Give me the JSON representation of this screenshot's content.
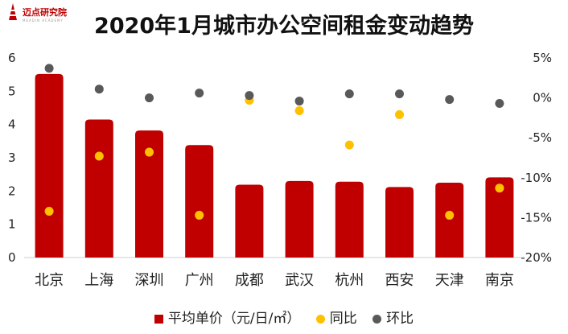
{
  "logo": {
    "name": "迈点研究院",
    "subtitle": "MEADIN ACADEMY",
    "color": "#c00000"
  },
  "chart_data": {
    "type": "bar",
    "title": "2020年1月城市办公空间租金变动趋势",
    "categories": [
      "北京",
      "上海",
      "深圳",
      "广州",
      "成都",
      "武汉",
      "杭州",
      "西安",
      "天津",
      "南京"
    ],
    "series": [
      {
        "name": "平均单价（元/日/㎡）",
        "type": "bar",
        "axis": "left",
        "color": "#c00000",
        "values": [
          5.52,
          4.15,
          3.82,
          3.38,
          2.19,
          2.3,
          2.28,
          2.12,
          2.25,
          2.41
        ]
      },
      {
        "name": "同比",
        "type": "scatter",
        "axis": "right",
        "color": "#ffc000",
        "values": [
          -14.2,
          -7.3,
          -6.8,
          -14.7,
          -0.3,
          -1.6,
          -5.9,
          -2.1,
          -14.7,
          -11.3
        ]
      },
      {
        "name": "环比",
        "type": "scatter",
        "axis": "right",
        "color": "#595959",
        "values": [
          3.7,
          1.1,
          0.0,
          0.6,
          0.3,
          -0.4,
          0.5,
          0.5,
          -0.2,
          -0.7
        ]
      }
    ],
    "left_axis": {
      "ylim": [
        0,
        6
      ],
      "ticks": [
        "0",
        "1",
        "2",
        "3",
        "4",
        "5",
        "6"
      ]
    },
    "right_axis": {
      "ylim": [
        -20,
        5
      ],
      "ticks": [
        "-20%",
        "-15%",
        "-10%",
        "-5%",
        "0%",
        "5%"
      ]
    },
    "legend_position": "bottom"
  }
}
